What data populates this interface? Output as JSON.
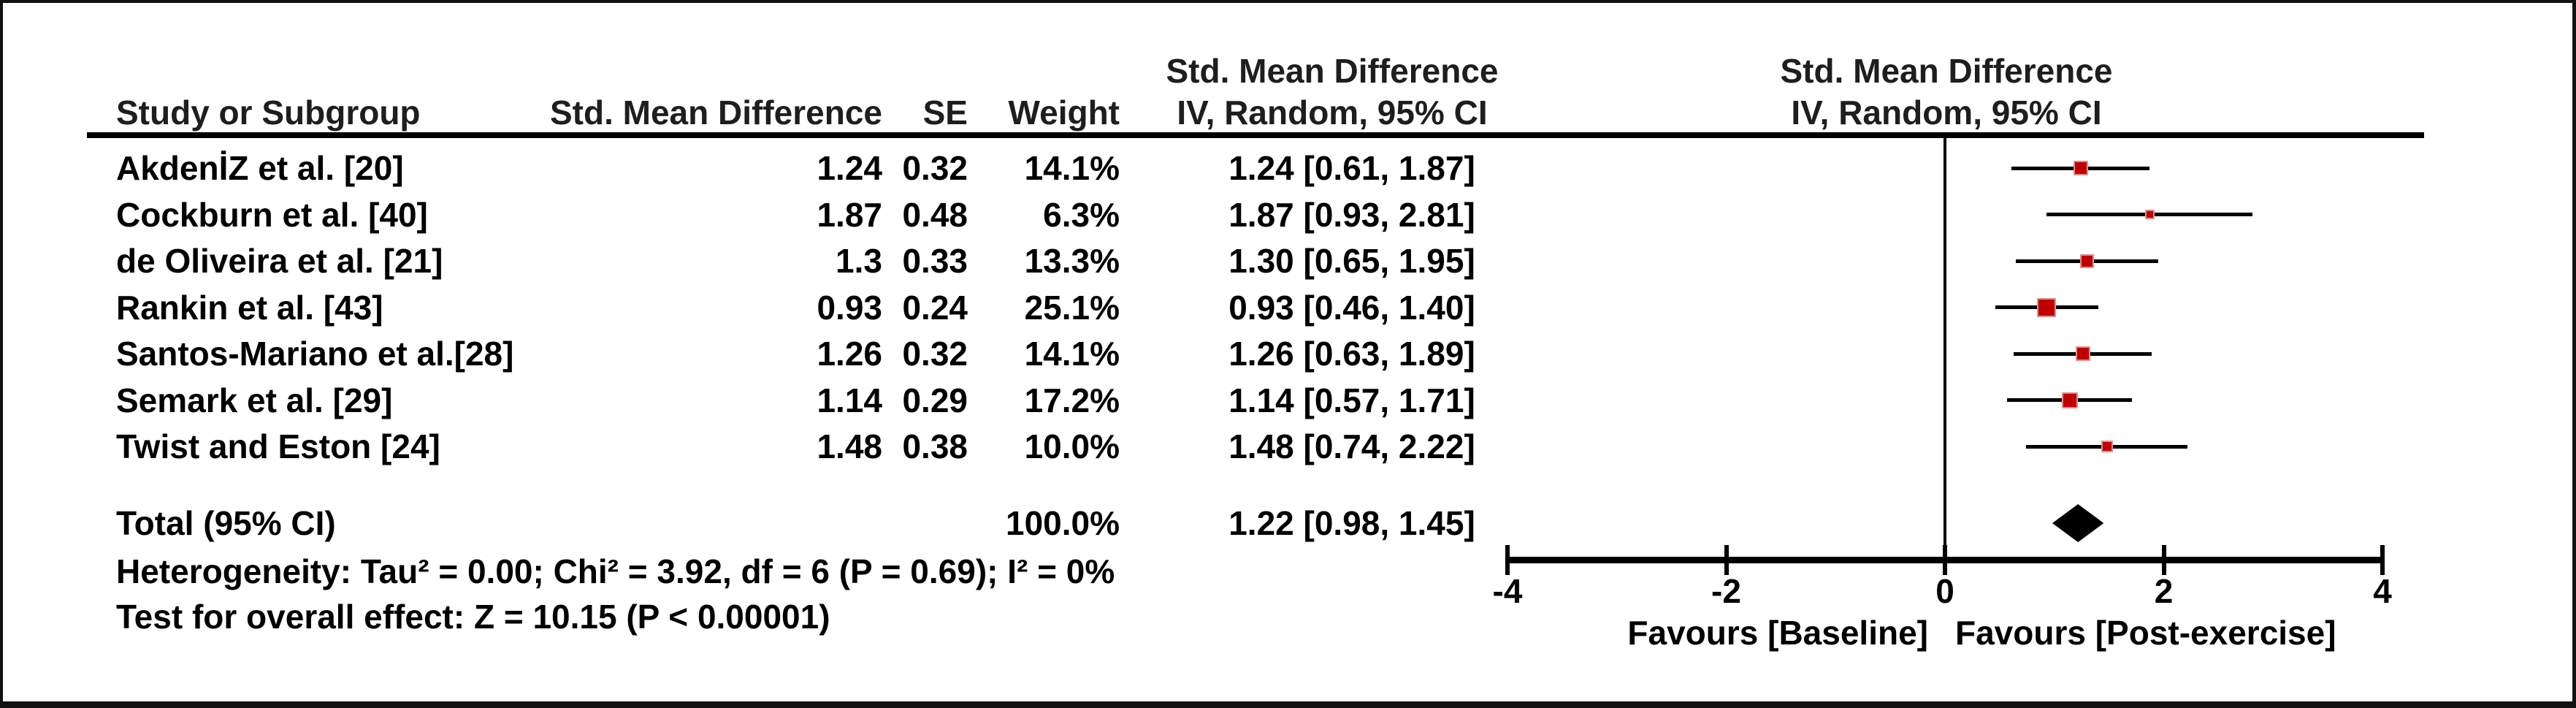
{
  "header": {
    "stats_top": "Std. Mean Difference",
    "stats_bottom": "IV, Random, 95% CI",
    "plot_top": "Std. Mean Difference",
    "plot_bottom": "IV, Random, 95% CI",
    "study_col": "Study or Subgroup",
    "smd_col": "Std. Mean Difference",
    "se_col": "SE",
    "weight_col": "Weight"
  },
  "chart_data": {
    "type": "forest",
    "effect_measure": "Std. Mean Difference",
    "model": "IV, Random, 95% CI",
    "axis": {
      "min": -4,
      "max": 4,
      "ticks": [
        -4,
        -2,
        0,
        2,
        4
      ],
      "tick_labels": [
        "-4",
        "-2",
        "0",
        "2",
        "4"
      ]
    },
    "studies": [
      {
        "label": "AkdenİZ et al. [20]",
        "smd": "1.24",
        "se": "0.32",
        "weight": "14.1%",
        "ci_text": "1.24 [0.61, 1.87]",
        "estimate": 1.24,
        "ci_low": 0.61,
        "ci_high": 1.87,
        "weight_pct": 14.1
      },
      {
        "label": "Cockburn et al. [40]",
        "smd": "1.87",
        "se": "0.48",
        "weight": "6.3%",
        "ci_text": "1.87 [0.93, 2.81]",
        "estimate": 1.87,
        "ci_low": 0.93,
        "ci_high": 2.81,
        "weight_pct": 6.3
      },
      {
        "label": "de Oliveira et al. [21]",
        "smd": "1.3",
        "se": "0.33",
        "weight": "13.3%",
        "ci_text": "1.30 [0.65, 1.95]",
        "estimate": 1.3,
        "ci_low": 0.65,
        "ci_high": 1.95,
        "weight_pct": 13.3
      },
      {
        "label": "Rankin et al. [43]",
        "smd": "0.93",
        "se": "0.24",
        "weight": "25.1%",
        "ci_text": "0.93 [0.46, 1.40]",
        "estimate": 0.93,
        "ci_low": 0.46,
        "ci_high": 1.4,
        "weight_pct": 25.1
      },
      {
        "label": "Santos-Mariano et al.[28]",
        "smd": "1.26",
        "se": "0.32",
        "weight": "14.1%",
        "ci_text": "1.26 [0.63, 1.89]",
        "estimate": 1.26,
        "ci_low": 0.63,
        "ci_high": 1.89,
        "weight_pct": 14.1
      },
      {
        "label": "Semark et al. [29]",
        "smd": "1.14",
        "se": "0.29",
        "weight": "17.2%",
        "ci_text": "1.14 [0.57, 1.71]",
        "estimate": 1.14,
        "ci_low": 0.57,
        "ci_high": 1.71,
        "weight_pct": 17.2
      },
      {
        "label": "Twist and Eston [24]",
        "smd": "1.48",
        "se": "0.38",
        "weight": "10.0%",
        "ci_text": "1.48 [0.74, 2.22]",
        "estimate": 1.48,
        "ci_low": 0.74,
        "ci_high": 2.22,
        "weight_pct": 10.0
      }
    ],
    "total": {
      "label": "Total (95% CI)",
      "weight": "100.0%",
      "ci_text": "1.22 [0.98, 1.45]",
      "estimate": 1.22,
      "ci_low": 0.98,
      "ci_high": 1.45
    },
    "heterogeneity": "Heterogeneity: Tau² = 0.00; Chi² = 3.92, df = 6 (P = 0.69); I² = 0%",
    "overall_effect": "Test for overall effect: Z = 10.15 (P < 0.00001)",
    "favours_left": "Favours [Baseline]",
    "favours_right": "Favours [Post-exercise]",
    "colors": {
      "marker": "#c00000",
      "marker_border": "#dd8f8f",
      "line": "#000000",
      "diamond": "#000000"
    }
  }
}
